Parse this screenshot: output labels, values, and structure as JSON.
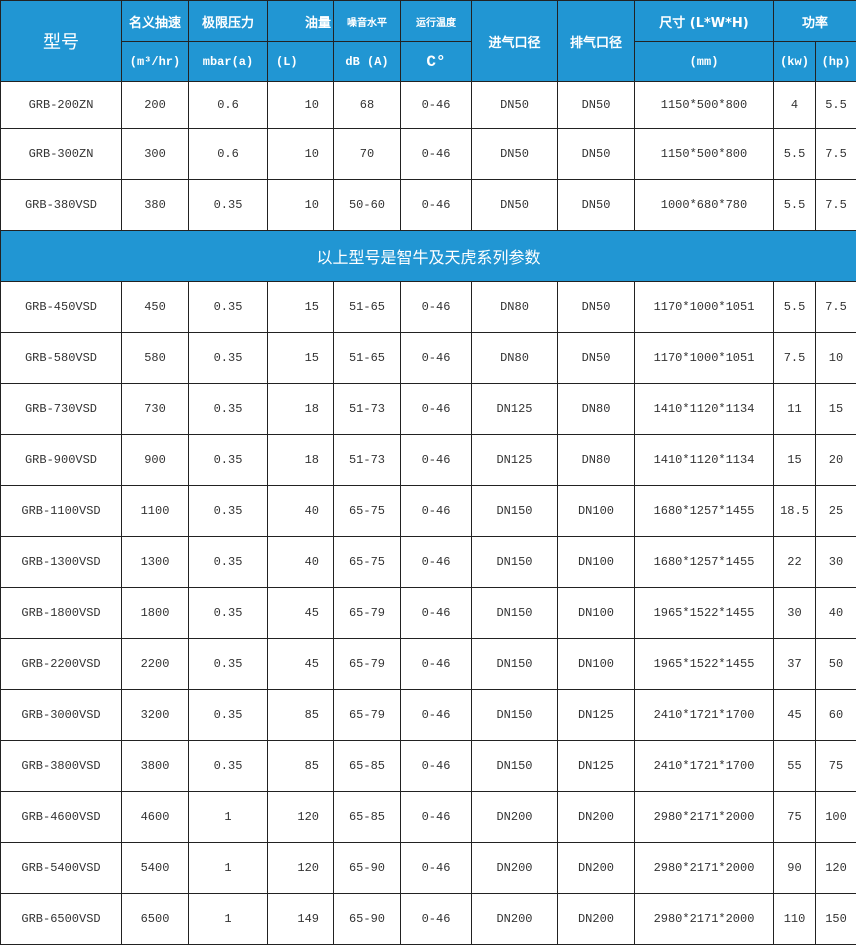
{
  "header": {
    "model": "型号",
    "flow": "名义抽速",
    "flow_unit": "(m³/hr)",
    "pressure": "极限压力",
    "pressure_unit": "mbar(a)",
    "oil": "油量",
    "oil_unit": "(L)",
    "noise": "噪音水平",
    "noise_unit": "dB (A)",
    "temp": "运行温度",
    "temp_unit": "C°",
    "inlet": "进气口径",
    "outlet": "排气口径",
    "size": "尺寸 (L*W*H)",
    "size_unit": "(mm)",
    "power": "功率",
    "power_kw": "(kw)",
    "power_hp": "(hp)"
  },
  "banner": "以上型号是智牛及天虎系列参数",
  "rows_top": [
    [
      "GRB-200ZN",
      "200",
      "0.6",
      "10",
      "68",
      "0-46",
      "DN50",
      "DN50",
      "1150*500*800",
      "4",
      "5.5"
    ],
    [
      "GRB-300ZN",
      "300",
      "0.6",
      "10",
      "70",
      "0-46",
      "DN50",
      "DN50",
      "1150*500*800",
      "5.5",
      "7.5"
    ],
    [
      "GRB-380VSD",
      "380",
      "0.35",
      "10",
      "50-60",
      "0-46",
      "DN50",
      "DN50",
      "1000*680*780",
      "5.5",
      "7.5"
    ]
  ],
  "rows_bottom": [
    [
      "GRB-450VSD",
      "450",
      "0.35",
      "15",
      "51-65",
      "0-46",
      "DN80",
      "DN50",
      "1170*1000*1051",
      "5.5",
      "7.5"
    ],
    [
      "GRB-580VSD",
      "580",
      "0.35",
      "15",
      "51-65",
      "0-46",
      "DN80",
      "DN50",
      "1170*1000*1051",
      "7.5",
      "10"
    ],
    [
      "GRB-730VSD",
      "730",
      "0.35",
      "18",
      "51-73",
      "0-46",
      "DN125",
      "DN80",
      "1410*1120*1134",
      "11",
      "15"
    ],
    [
      "GRB-900VSD",
      "900",
      "0.35",
      "18",
      "51-73",
      "0-46",
      "DN125",
      "DN80",
      "1410*1120*1134",
      "15",
      "20"
    ],
    [
      "GRB-1100VSD",
      "1100",
      "0.35",
      "40",
      "65-75",
      "0-46",
      "DN150",
      "DN100",
      "1680*1257*1455",
      "18.5",
      "25"
    ],
    [
      "GRB-1300VSD",
      "1300",
      "0.35",
      "40",
      "65-75",
      "0-46",
      "DN150",
      "DN100",
      "1680*1257*1455",
      "22",
      "30"
    ],
    [
      "GRB-1800VSD",
      "1800",
      "0.35",
      "45",
      "65-79",
      "0-46",
      "DN150",
      "DN100",
      "1965*1522*1455",
      "30",
      "40"
    ],
    [
      "GRB-2200VSD",
      "2200",
      "0.35",
      "45",
      "65-79",
      "0-46",
      "DN150",
      "DN100",
      "1965*1522*1455",
      "37",
      "50"
    ],
    [
      "GRB-3000VSD",
      "3200",
      "0.35",
      "85",
      "65-79",
      "0-46",
      "DN150",
      "DN125",
      "2410*1721*1700",
      "45",
      "60"
    ],
    [
      "GRB-3800VSD",
      "3800",
      "0.35",
      "85",
      "65-85",
      "0-46",
      "DN150",
      "DN125",
      "2410*1721*1700",
      "55",
      "75"
    ],
    [
      "GRB-4600VSD",
      "4600",
      "1",
      "120",
      "65-85",
      "0-46",
      "DN200",
      "DN200",
      "2980*2171*2000",
      "75",
      "100"
    ],
    [
      "GRB-5400VSD",
      "5400",
      "1",
      "120",
      "65-90",
      "0-46",
      "DN200",
      "DN200",
      "2980*2171*2000",
      "90",
      "120"
    ],
    [
      "GRB-6500VSD",
      "6500",
      "1",
      "149",
      "65-90",
      "0-46",
      "DN200",
      "DN200",
      "2980*2171*2000",
      "110",
      "150"
    ]
  ],
  "colors": {
    "header_bg": "#2196d3",
    "border": "#222222"
  }
}
